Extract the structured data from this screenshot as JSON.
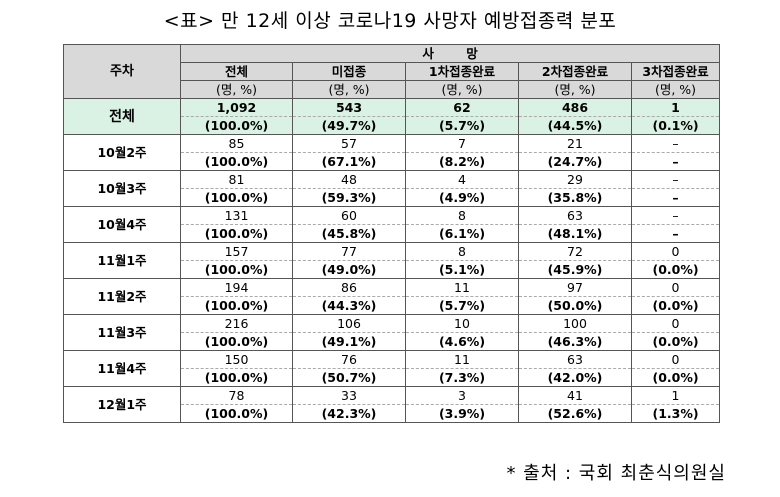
{
  "title": "<표> 만 12세 이상 코로나19 사망자 예방접종력 분포",
  "header": {
    "week_label": "주차",
    "death_label": "사 망",
    "columns": [
      "전체",
      "미접종",
      "1차접종완료",
      "2차접종완료",
      "3차접종완료"
    ],
    "unit": "(명, %)"
  },
  "rows": [
    {
      "week": "전체",
      "counts": [
        "1,092",
        "543",
        "62",
        "486",
        "1"
      ],
      "pcts": [
        "(100.0%)",
        "(49.7%)",
        "(5.7%)",
        "(44.5%)",
        "(0.1%)"
      ]
    },
    {
      "week": "10월2주",
      "counts": [
        "85",
        "57",
        "7",
        "21",
        "–"
      ],
      "pcts": [
        "(100.0%)",
        "(67.1%)",
        "(8.2%)",
        "(24.7%)",
        "–"
      ]
    },
    {
      "week": "10월3주",
      "counts": [
        "81",
        "48",
        "4",
        "29",
        "–"
      ],
      "pcts": [
        "(100.0%)",
        "(59.3%)",
        "(4.9%)",
        "(35.8%)",
        "–"
      ]
    },
    {
      "week": "10월4주",
      "counts": [
        "131",
        "60",
        "8",
        "63",
        "–"
      ],
      "pcts": [
        "(100.0%)",
        "(45.8%)",
        "(6.1%)",
        "(48.1%)",
        "–"
      ]
    },
    {
      "week": "11월1주",
      "counts": [
        "157",
        "77",
        "8",
        "72",
        "0"
      ],
      "pcts": [
        "(100.0%)",
        "(49.0%)",
        "(5.1%)",
        "(45.9%)",
        "(0.0%)"
      ]
    },
    {
      "week": "11월2주",
      "counts": [
        "194",
        "86",
        "11",
        "97",
        "0"
      ],
      "pcts": [
        "(100.0%)",
        "(44.3%)",
        "(5.7%)",
        "(50.0%)",
        "(0.0%)"
      ]
    },
    {
      "week": "11월3주",
      "counts": [
        "216",
        "106",
        "10",
        "100",
        "0"
      ],
      "pcts": [
        "(100.0%)",
        "(49.1%)",
        "(4.6%)",
        "(46.3%)",
        "(0.0%)"
      ]
    },
    {
      "week": "11월4주",
      "counts": [
        "150",
        "76",
        "11",
        "63",
        "0"
      ],
      "pcts": [
        "(100.0%)",
        "(50.7%)",
        "(7.3%)",
        "(42.0%)",
        "(0.0%)"
      ]
    },
    {
      "week": "12월1주",
      "counts": [
        "78",
        "33",
        "3",
        "41",
        "1"
      ],
      "pcts": [
        "(100.0%)",
        "(42.3%)",
        "(3.9%)",
        "(52.6%)",
        "(1.3%)"
      ]
    }
  ],
  "source": "* 출처 : 국회 최춘식의원실",
  "colors": {
    "header_bg": "#d9d9d9",
    "total_row_bg": "#d9f2e3",
    "border": "#555555"
  }
}
